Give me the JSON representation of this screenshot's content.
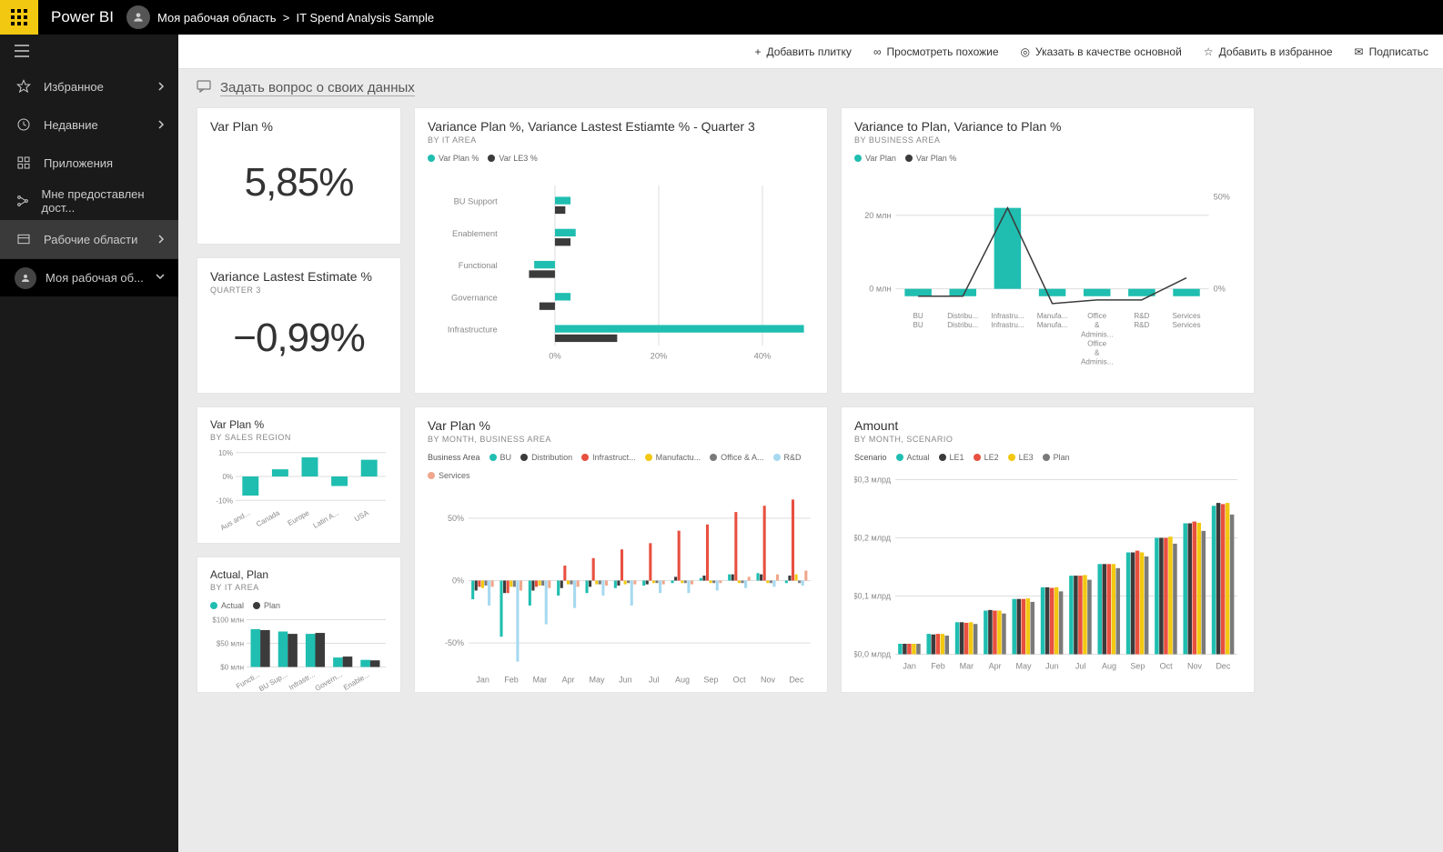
{
  "header": {
    "app_name": "Power BI",
    "workspace": "Моя рабочая область",
    "report": "IT Spend Analysis Sample"
  },
  "sidebar": {
    "items": [
      {
        "icon": "star",
        "label": "Избранное",
        "chevron": true
      },
      {
        "icon": "clock",
        "label": "Недавние",
        "chevron": true
      },
      {
        "icon": "apps",
        "label": "Приложения",
        "chevron": false
      },
      {
        "icon": "share",
        "label": "Мне предоставлен дост...",
        "chevron": false
      },
      {
        "icon": "workspaces",
        "label": "Рабочие области",
        "chevron": true,
        "selected": true
      }
    ],
    "workspace_item": "Моя рабочая об..."
  },
  "action_bar": {
    "add_tile": "Добавить плитку",
    "related": "Просмотреть похожие",
    "set_featured": "Указать в качестве основной",
    "favorite": "Добавить в избранное",
    "subscribe": "Подписатьс"
  },
  "qa": "Задать вопрос о своих данных",
  "palette": {
    "teal": "#1fbeb0",
    "dark": "#3b3b3b",
    "red": "#e8503f",
    "yellow": "#f2c811",
    "blue": "#4fc3f7",
    "lightblue": "#a7d9f0",
    "salmon": "#f0a78c",
    "gray": "#7a7a7a",
    "grid": "#dedede",
    "text": "#333333"
  },
  "tiles": {
    "kpi1": {
      "title": "Var Plan %",
      "value": "5,85%"
    },
    "kpi2": {
      "title": "Variance Lastest Estimate %",
      "sub": "QUARTER 3",
      "value": "−0,99%"
    },
    "t2": {
      "title": "Variance Plan %, Variance Lastest Estiamte % - Quarter 3",
      "sub": "BY IT AREA",
      "legend": [
        {
          "c": "teal",
          "t": "Var Plan %"
        },
        {
          "c": "dark",
          "t": "Var LE3 %"
        }
      ],
      "type": "hbar-grouped",
      "categories": [
        "BU Support",
        "Enablement",
        "Functional",
        "Governance",
        "Infrastructure"
      ],
      "series": [
        {
          "color": "teal",
          "values": [
            3,
            4,
            -4,
            3,
            48
          ]
        },
        {
          "color": "dark",
          "values": [
            2,
            3,
            -5,
            -3,
            12
          ]
        }
      ],
      "xlim": [
        -10,
        50
      ],
      "xticks": [
        "0%",
        "20%",
        "40%"
      ]
    },
    "t3": {
      "title": "Variance to Plan, Variance to Plan %",
      "sub": "BY BUSINESS AREA",
      "legend": [
        {
          "c": "teal",
          "t": "Var Plan"
        },
        {
          "c": "dark",
          "t": "Var Plan %"
        }
      ],
      "type": "bar-line",
      "categories": [
        "BU BU",
        "Distribu... Distribu...",
        "Infrastru... Infrastru...",
        "Manufa... Manufa...",
        "Office & Adminis... Office & Adminis...",
        "R&D R&D",
        "Services Services"
      ],
      "bars": {
        "color": "teal",
        "values": [
          -2,
          -2,
          22,
          -2,
          -2,
          -2,
          -2
        ]
      },
      "line": {
        "color": "dark",
        "values": [
          -2,
          -2,
          22,
          -4,
          -3,
          -3,
          3
        ]
      },
      "y_left": [
        "20 млн",
        "0 млн"
      ],
      "y_right": [
        "50%",
        "0%"
      ]
    },
    "t4": {
      "title": "Var Plan %",
      "sub": "BY SALES REGION",
      "type": "bar",
      "categories": [
        "Aus and...",
        "Canada",
        "Europe",
        "Latin A...",
        "USA"
      ],
      "values": [
        -8,
        3,
        8,
        -4,
        7
      ],
      "color": "teal",
      "yticks": [
        "10%",
        "0%",
        "-10%"
      ]
    },
    "t5": {
      "title": "Actual, Plan",
      "sub": "BY IT AREA",
      "legend": [
        {
          "c": "teal",
          "t": "Actual"
        },
        {
          "c": "dark",
          "t": "Plan"
        }
      ],
      "type": "bar-grouped",
      "categories": [
        "Functi...",
        "BU Sup...",
        "Infrastr...",
        "Govern...",
        "Enable..."
      ],
      "series": [
        {
          "color": "teal",
          "values": [
            80,
            75,
            70,
            20,
            15
          ]
        },
        {
          "color": "dark",
          "values": [
            78,
            70,
            72,
            22,
            14
          ]
        }
      ],
      "yticks": [
        "$100 млн",
        "$50 млн",
        "$0 млн"
      ]
    },
    "t6": {
      "title": "Var Plan %",
      "sub": "BY MONTH, BUSINESS AREA",
      "legend_label": "Business Area",
      "legend": [
        {
          "c": "teal",
          "t": "BU"
        },
        {
          "c": "dark",
          "t": "Distribution"
        },
        {
          "c": "red",
          "t": "Infrastruct..."
        },
        {
          "c": "yellow",
          "t": "Manufactu..."
        },
        {
          "c": "gray",
          "t": "Office & A..."
        },
        {
          "c": "lightblue",
          "t": "R&D"
        },
        {
          "c": "salmon",
          "t": "Services"
        }
      ],
      "type": "bar-grouped",
      "categories": [
        "Jan",
        "Feb",
        "Mar",
        "Apr",
        "May",
        "Jun",
        "Jul",
        "Aug",
        "Sep",
        "Oct",
        "Nov",
        "Dec"
      ],
      "yticks": [
        "50%",
        "0%",
        "-50%"
      ],
      "series": [
        {
          "color": "teal",
          "values": [
            -15,
            -45,
            -20,
            -12,
            -10,
            -6,
            -4,
            -2,
            2,
            5,
            6,
            -2
          ]
        },
        {
          "color": "dark",
          "values": [
            -8,
            -10,
            -8,
            -6,
            -5,
            -4,
            -3,
            3,
            4,
            5,
            5,
            4
          ]
        },
        {
          "color": "red",
          "values": [
            -5,
            -10,
            -5,
            12,
            18,
            25,
            30,
            40,
            45,
            55,
            60,
            65
          ]
        },
        {
          "color": "yellow",
          "values": [
            -6,
            -5,
            -4,
            -3,
            -3,
            -3,
            -2,
            -2,
            -2,
            -2,
            -2,
            5
          ]
        },
        {
          "color": "gray",
          "values": [
            -4,
            -5,
            -4,
            -3,
            -3,
            -2,
            -2,
            -2,
            -2,
            -2,
            -2,
            -2
          ]
        },
        {
          "color": "lightblue",
          "values": [
            -20,
            -65,
            -35,
            -22,
            -12,
            -20,
            -10,
            -10,
            -8,
            -6,
            -5,
            -4
          ]
        },
        {
          "color": "salmon",
          "values": [
            -5,
            -8,
            -6,
            -5,
            -4,
            -3,
            -3,
            -3,
            -2,
            3,
            5,
            8
          ]
        }
      ]
    },
    "t7": {
      "title": "Amount",
      "sub": "BY MONTH, SCENARIO",
      "legend_label": "Scenario",
      "legend": [
        {
          "c": "teal",
          "t": "Actual"
        },
        {
          "c": "dark",
          "t": "LE1"
        },
        {
          "c": "red",
          "t": "LE2"
        },
        {
          "c": "yellow",
          "t": "LE3"
        },
        {
          "c": "gray",
          "t": "Plan"
        }
      ],
      "type": "bar-grouped",
      "categories": [
        "Jan",
        "Feb",
        "Mar",
        "Apr",
        "May",
        "Jun",
        "Jul",
        "Aug",
        "Sep",
        "Oct",
        "Nov",
        "Dec"
      ],
      "yticks": [
        "$0,3 млрд",
        "$0,2 млрд",
        "$0,1 млрд",
        "$0,0 млрд"
      ],
      "series": [
        {
          "color": "teal",
          "values": [
            0.018,
            0.035,
            0.055,
            0.075,
            0.095,
            0.115,
            0.135,
            0.155,
            0.175,
            0.2,
            0.225,
            0.255
          ]
        },
        {
          "color": "dark",
          "values": [
            0.018,
            0.034,
            0.055,
            0.076,
            0.095,
            0.115,
            0.135,
            0.155,
            0.175,
            0.2,
            0.225,
            0.26
          ]
        },
        {
          "color": "red",
          "values": [
            0.018,
            0.035,
            0.054,
            0.075,
            0.095,
            0.114,
            0.135,
            0.155,
            0.178,
            0.2,
            0.228,
            0.258
          ]
        },
        {
          "color": "yellow",
          "values": [
            0.018,
            0.035,
            0.055,
            0.075,
            0.096,
            0.115,
            0.136,
            0.155,
            0.175,
            0.202,
            0.226,
            0.26
          ]
        },
        {
          "color": "gray",
          "values": [
            0.018,
            0.032,
            0.052,
            0.07,
            0.09,
            0.108,
            0.128,
            0.148,
            0.168,
            0.19,
            0.212,
            0.24
          ]
        }
      ],
      "ymax": 0.3
    }
  }
}
